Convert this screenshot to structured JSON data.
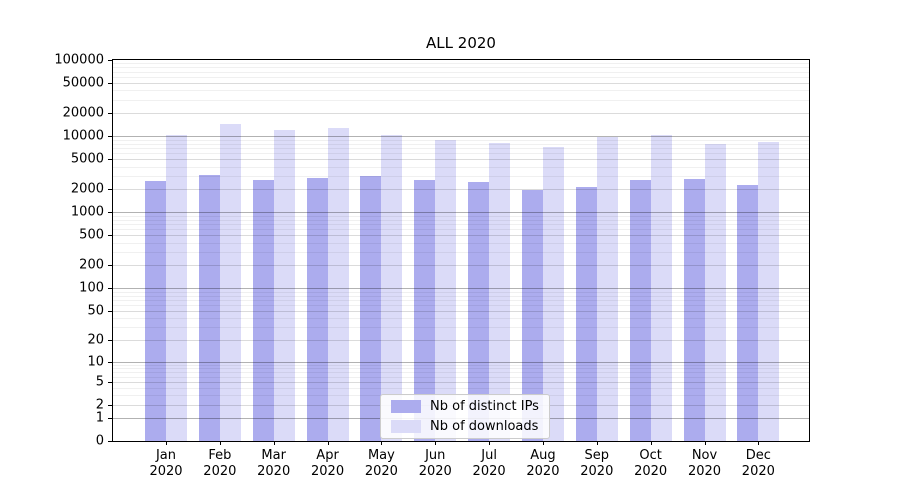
{
  "title": "ALL 2020",
  "chart_data": {
    "type": "bar",
    "title": "ALL 2020",
    "categories": [
      "Jan 2020",
      "Feb 2020",
      "Mar 2020",
      "Apr 2020",
      "May 2020",
      "Jun 2020",
      "Jul 2020",
      "Aug 2020",
      "Sep 2020",
      "Oct 2020",
      "Nov 2020",
      "Dec 2020"
    ],
    "series": [
      {
        "name": "Nb of distinct IPs",
        "color": "#acacee",
        "values": [
          2600,
          3060,
          2680,
          2820,
          2970,
          2640,
          2500,
          1950,
          2150,
          2680,
          2740,
          2310
        ]
      },
      {
        "name": "Nb of downloads",
        "color": "#dbdbf8",
        "values": [
          10500,
          14500,
          12200,
          13000,
          10300,
          8900,
          8200,
          7300,
          9900,
          10300,
          8000,
          8300
        ]
      }
    ],
    "y_scale": "log1p",
    "y_ticks": [
      0,
      1,
      2,
      5,
      10,
      20,
      50,
      100,
      200,
      500,
      1000,
      2000,
      5000,
      10000,
      20000,
      50000,
      100000
    ],
    "ylim": [
      0,
      100000
    ],
    "grid": true,
    "legend_position": "lower-center"
  },
  "grid_colors": {
    "decade": "rgba(0,0,0,0.30)",
    "labeled_minor": "rgba(0,0,0,0.14)",
    "minor": "rgba(0,0,0,0.06)"
  }
}
